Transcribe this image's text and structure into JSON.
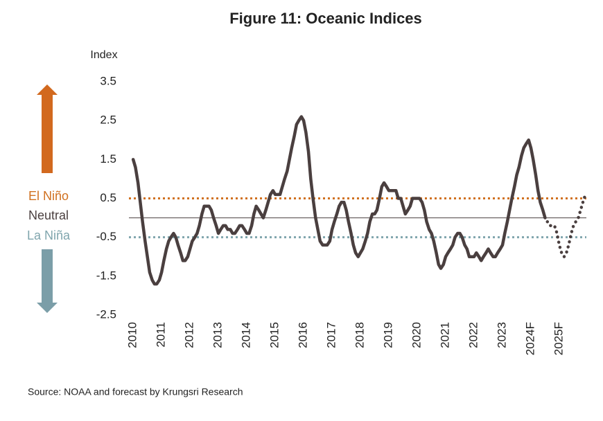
{
  "chart_data": {
    "type": "line",
    "title": "Figure 11: Oceanic Indices",
    "y_axis_label": "Index",
    "source": "Source: NOAA and forecast by Krungsri Research",
    "xlim": [
      2009.85,
      2026.05
    ],
    "xticks": [
      {
        "value": 2010,
        "label": "2010"
      },
      {
        "value": 2011,
        "label": "2011"
      },
      {
        "value": 2012,
        "label": "2012"
      },
      {
        "value": 2013,
        "label": "2013"
      },
      {
        "value": 2014,
        "label": "2014"
      },
      {
        "value": 2015,
        "label": "2015"
      },
      {
        "value": 2016,
        "label": "2016"
      },
      {
        "value": 2017,
        "label": "2017"
      },
      {
        "value": 2018,
        "label": "2018"
      },
      {
        "value": 2019,
        "label": "2019"
      },
      {
        "value": 2020,
        "label": "2020"
      },
      {
        "value": 2021,
        "label": "2021"
      },
      {
        "value": 2022,
        "label": "2022"
      },
      {
        "value": 2023,
        "label": "2023"
      },
      {
        "value": 2024,
        "label": "2024F"
      },
      {
        "value": 2025,
        "label": "2025F"
      }
    ],
    "ylim": [
      -2.5,
      3.5
    ],
    "yticks": [
      3.5,
      2.5,
      1.5,
      0.5,
      -0.5,
      -1.5,
      -2.5
    ],
    "reference_lines": [
      {
        "label": "El Niño",
        "value": 0.5,
        "color": "#d0701f",
        "style": "dotted"
      },
      {
        "label": "Neutral",
        "value": 0,
        "color": "#4a3f3f",
        "style": "solid"
      },
      {
        "label": "La Niña",
        "value": -0.5,
        "color": "#7fa5ad",
        "style": "dotted"
      }
    ],
    "series": [
      {
        "color": "#4a3f3f",
        "style": "solid",
        "x": [
          2010,
          2010.08,
          2010.17,
          2010.25,
          2010.33,
          2010.42,
          2010.5,
          2010.58,
          2010.67,
          2010.75,
          2010.83,
          2010.92,
          2011,
          2011.08,
          2011.17,
          2011.25,
          2011.33,
          2011.42,
          2011.5,
          2011.58,
          2011.67,
          2011.75,
          2011.83,
          2011.92,
          2012,
          2012.08,
          2012.17,
          2012.25,
          2012.33,
          2012.42,
          2012.5,
          2012.58,
          2012.67,
          2012.75,
          2012.83,
          2012.92,
          2013,
          2013.08,
          2013.17,
          2013.25,
          2013.33,
          2013.42,
          2013.5,
          2013.58,
          2013.67,
          2013.75,
          2013.83,
          2013.92,
          2014,
          2014.08,
          2014.17,
          2014.25,
          2014.33,
          2014.42,
          2014.5,
          2014.58,
          2014.67,
          2014.75,
          2014.83,
          2014.92,
          2015,
          2015.08,
          2015.17,
          2015.25,
          2015.33,
          2015.42,
          2015.5,
          2015.58,
          2015.67,
          2015.75,
          2015.83,
          2015.92,
          2016,
          2016.08,
          2016.17,
          2016.25,
          2016.33,
          2016.42,
          2016.5,
          2016.58,
          2016.67,
          2016.75,
          2016.83,
          2016.92,
          2017,
          2017.08,
          2017.17,
          2017.25,
          2017.33,
          2017.42,
          2017.5,
          2017.58,
          2017.67,
          2017.75,
          2017.83,
          2017.92,
          2018,
          2018.08,
          2018.17,
          2018.25,
          2018.33,
          2018.42,
          2018.5,
          2018.58,
          2018.67,
          2018.75,
          2018.83,
          2018.92,
          2019,
          2019.08,
          2019.17,
          2019.25,
          2019.33,
          2019.42,
          2019.5,
          2019.58,
          2019.67,
          2019.75,
          2019.83,
          2019.92,
          2020,
          2020.08,
          2020.17,
          2020.25,
          2020.33,
          2020.42,
          2020.5,
          2020.58,
          2020.67,
          2020.75,
          2020.83,
          2020.92,
          2021,
          2021.08,
          2021.17,
          2021.25,
          2021.33,
          2021.42,
          2021.5,
          2021.58,
          2021.67,
          2021.75,
          2021.83,
          2021.92,
          2022,
          2022.08,
          2022.17,
          2022.25,
          2022.33,
          2022.42,
          2022.5,
          2022.58,
          2022.67,
          2022.75,
          2022.83,
          2022.92,
          2023,
          2023.08,
          2023.17,
          2023.25,
          2023.33,
          2023.42,
          2023.5,
          2023.58,
          2023.67,
          2023.75,
          2023.83,
          2023.92,
          2024,
          2024.08,
          2024.17,
          2024.25,
          2024.33,
          2024.42,
          2024.5
        ],
        "values": [
          1.5,
          1.3,
          0.9,
          0.4,
          -0.1,
          -0.6,
          -1.0,
          -1.4,
          -1.6,
          -1.7,
          -1.7,
          -1.6,
          -1.4,
          -1.1,
          -0.8,
          -0.6,
          -0.5,
          -0.4,
          -0.5,
          -0.7,
          -0.9,
          -1.1,
          -1.1,
          -1.0,
          -0.8,
          -0.6,
          -0.5,
          -0.4,
          -0.2,
          0.1,
          0.3,
          0.3,
          0.3,
          0.2,
          0.0,
          -0.2,
          -0.4,
          -0.3,
          -0.2,
          -0.2,
          -0.3,
          -0.3,
          -0.4,
          -0.4,
          -0.3,
          -0.2,
          -0.2,
          -0.3,
          -0.4,
          -0.4,
          -0.2,
          0.1,
          0.3,
          0.2,
          0.1,
          0.0,
          0.2,
          0.4,
          0.6,
          0.7,
          0.6,
          0.6,
          0.6,
          0.8,
          1.0,
          1.2,
          1.5,
          1.8,
          2.1,
          2.4,
          2.5,
          2.6,
          2.5,
          2.2,
          1.7,
          1.0,
          0.5,
          0.0,
          -0.3,
          -0.6,
          -0.7,
          -0.7,
          -0.7,
          -0.6,
          -0.3,
          -0.1,
          0.1,
          0.3,
          0.4,
          0.4,
          0.2,
          -0.1,
          -0.4,
          -0.7,
          -0.9,
          -1.0,
          -0.9,
          -0.8,
          -0.6,
          -0.4,
          -0.1,
          0.1,
          0.1,
          0.2,
          0.5,
          0.8,
          0.9,
          0.8,
          0.7,
          0.7,
          0.7,
          0.7,
          0.5,
          0.5,
          0.3,
          0.1,
          0.2,
          0.3,
          0.5,
          0.5,
          0.5,
          0.5,
          0.4,
          0.2,
          -0.1,
          -0.3,
          -0.4,
          -0.6,
          -0.9,
          -1.2,
          -1.3,
          -1.2,
          -1.0,
          -0.9,
          -0.8,
          -0.7,
          -0.5,
          -0.4,
          -0.4,
          -0.5,
          -0.7,
          -0.8,
          -1.0,
          -1.0,
          -1.0,
          -0.9,
          -1.0,
          -1.1,
          -1.0,
          -0.9,
          -0.8,
          -0.9,
          -1.0,
          -1.0,
          -0.9,
          -0.8,
          -0.7,
          -0.4,
          -0.1,
          0.2,
          0.5,
          0.8,
          1.1,
          1.3,
          1.6,
          1.8,
          1.9,
          2.0,
          1.8,
          1.5,
          1.1,
          0.7,
          0.4,
          0.2,
          0.0
        ]
      },
      {
        "color": "#4a3f3f",
        "style": "dotted",
        "x": [
          2024.58,
          2024.67,
          2024.75,
          2024.83,
          2024.92,
          2025,
          2025.08,
          2025.17,
          2025.25,
          2025.33,
          2025.42,
          2025.5,
          2025.58,
          2025.67,
          2025.75,
          2025.83,
          2025.92
        ],
        "values": [
          -0.1,
          -0.2,
          -0.2,
          -0.2,
          -0.4,
          -0.7,
          -0.9,
          -1.0,
          -0.9,
          -0.7,
          -0.4,
          -0.2,
          -0.1,
          0.0,
          0.2,
          0.4,
          0.6
        ]
      }
    ]
  }
}
